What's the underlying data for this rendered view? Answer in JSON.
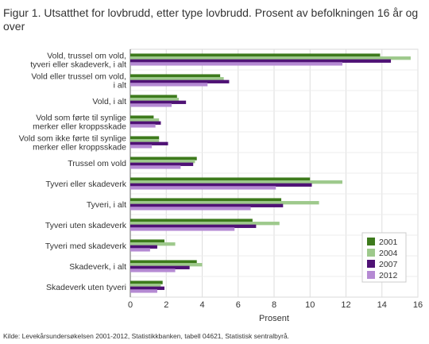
{
  "title": "Figur 1. Utsatthet for lovbrudd, etter type lovbrudd. Prosent av befolkningen 16 år og over",
  "source": "Kilde: Levekårsundersøkelsen 2001-2012, Statistikkbanken, tabell 04621, Statistisk sentralbyrå.",
  "chart_data": {
    "type": "bar",
    "orientation": "horizontal",
    "title": "Figur 1. Utsatthet for lovbrudd, etter type lovbrudd. Prosent av befolkningen 16 år og over",
    "xlabel": "Prosent",
    "ylabel": "",
    "xlim": [
      0,
      16
    ],
    "xticks": [
      0,
      2,
      4,
      6,
      8,
      10,
      12,
      14,
      16
    ],
    "grid": true,
    "legend_position": "bottom-right",
    "categories": [
      "Vold, trussel om vold, tyveri eller skadeverk, i alt",
      "Vold eller trussel om vold, i alt",
      "Vold, i alt",
      "Vold som førte til synlige merker eller kroppsskade",
      "Vold som ikke førte til synlige merker eller kroppsskade",
      "Trussel om vold",
      "Tyveri eller skadeverk",
      "Tyveri, i alt",
      "Tyveri uten skadeverk",
      "Tyveri med skadeverk",
      "Skadeverk, i alt",
      "Skadeverk uten tyveri"
    ],
    "category_lines": [
      [
        "Vold, trussel om vold,",
        "tyveri eller skadeverk, i alt"
      ],
      [
        "Vold eller trussel om vold,",
        "i alt"
      ],
      [
        "Vold, i alt"
      ],
      [
        "Vold som førte til synlige",
        "merker eller kroppsskade"
      ],
      [
        "Vold som ikke førte til synlige",
        "merker eller kroppsskade"
      ],
      [
        "Trussel om vold"
      ],
      [
        "Tyveri eller skadeverk"
      ],
      [
        "Tyveri, i alt"
      ],
      [
        "Tyveri uten skadeverk"
      ],
      [
        "Tyveri med skadeverk"
      ],
      [
        "Skadeverk, i alt"
      ],
      [
        "Skadeverk uten tyveri"
      ]
    ],
    "series": [
      {
        "name": "2001",
        "color": "#3d7a1c",
        "values": [
          13.9,
          5.0,
          2.6,
          1.3,
          1.6,
          3.7,
          10.0,
          8.4,
          6.8,
          1.9,
          3.7,
          1.8
        ]
      },
      {
        "name": "2004",
        "color": "#9ec98c",
        "values": [
          15.6,
          5.2,
          2.7,
          1.6,
          1.6,
          3.6,
          11.8,
          10.5,
          8.3,
          2.5,
          4.0,
          1.7
        ]
      },
      {
        "name": "2007",
        "color": "#4f1275",
        "values": [
          14.5,
          5.5,
          3.1,
          1.7,
          2.1,
          3.5,
          10.1,
          8.5,
          7.0,
          1.5,
          3.3,
          1.9
        ]
      },
      {
        "name": "2012",
        "color": "#b58ad3",
        "values": [
          11.8,
          4.3,
          2.3,
          1.4,
          1.2,
          2.8,
          8.1,
          6.7,
          5.8,
          1.1,
          2.5,
          1.5
        ]
      }
    ]
  }
}
